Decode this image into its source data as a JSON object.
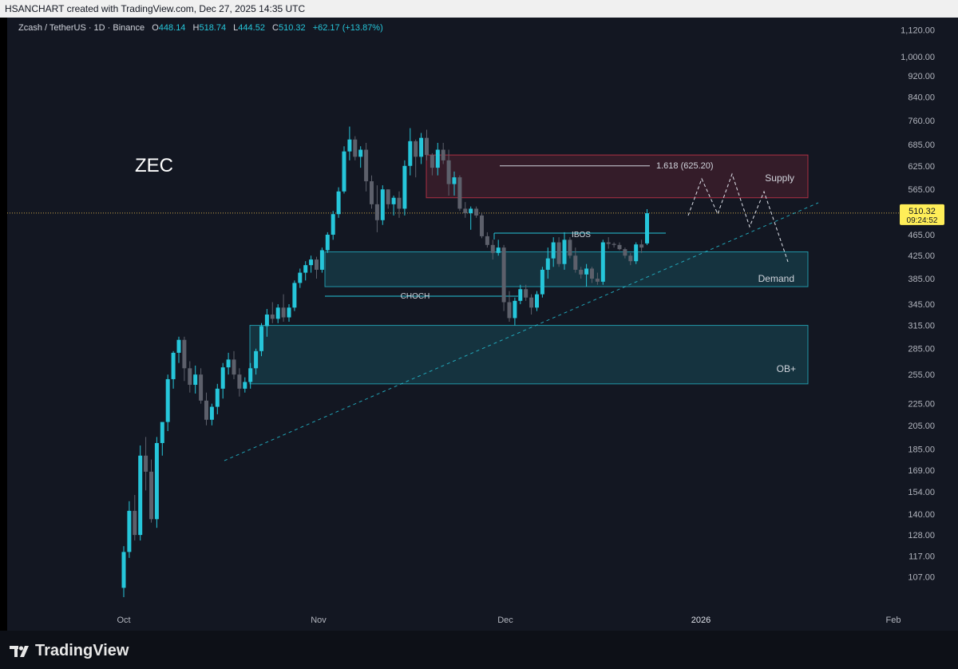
{
  "header": {
    "caption": "HSANCHART created with TradingView.com, Dec 27, 2025 14:35 UTC"
  },
  "legend": {
    "symbol": "Zcash / TetherUS · 1D · Binance",
    "open_label": "O",
    "open": "448.14",
    "high_label": "H",
    "high": "518.74",
    "low_label": "L",
    "low": "444.52",
    "close_label": "C",
    "close": "510.32",
    "change": "+62.17 (+13.87%)"
  },
  "branding": {
    "name": "TradingView"
  },
  "colors": {
    "background": "#131722",
    "up": "#26c6da",
    "down": "#5d606b",
    "zone_blue": "#26c6da",
    "zone_red": "#e53950",
    "price_tag": "#ffee58",
    "last_price_line": "#c8a24a"
  },
  "chart_data": {
    "type": "candlestick",
    "scale": "log",
    "ylim": [
      98,
      1150
    ],
    "y_ticks": [
      "1,120.00",
      "1,000.00",
      "920.00",
      "840.00",
      "760.00",
      "685.00",
      "625.00",
      "565.00",
      "510.32",
      "465.00",
      "425.00",
      "385.00",
      "345.00",
      "315.00",
      "285.00",
      "255.00",
      "225.00",
      "205.00",
      "185.00",
      "169.00",
      "154.00",
      "140.00",
      "128.00",
      "117.00",
      "107.00"
    ],
    "x_ticks": [
      "Oct",
      "Nov",
      "Dec",
      "2026",
      "Feb"
    ],
    "last_price": "510.32",
    "countdown": "09:24:52",
    "candles": [
      [
        102,
        122,
        98,
        119
      ],
      [
        119,
        148,
        116,
        142
      ],
      [
        142,
        152,
        125,
        128
      ],
      [
        128,
        188,
        125,
        180
      ],
      [
        180,
        195,
        155,
        168
      ],
      [
        168,
        177,
        135,
        137
      ],
      [
        137,
        195,
        132,
        190
      ],
      [
        190,
        205,
        180,
        208
      ],
      [
        208,
        255,
        200,
        250
      ],
      [
        250,
        282,
        240,
        280
      ],
      [
        280,
        300,
        268,
        296
      ],
      [
        296,
        300,
        248,
        262
      ],
      [
        262,
        270,
        236,
        244
      ],
      [
        244,
        265,
        235,
        255
      ],
      [
        255,
        262,
        225,
        228
      ],
      [
        228,
        236,
        205,
        210
      ],
      [
        210,
        225,
        205,
        222
      ],
      [
        222,
        245,
        215,
        240
      ],
      [
        240,
        268,
        230,
        263
      ],
      [
        263,
        280,
        255,
        272
      ],
      [
        272,
        282,
        250,
        255
      ],
      [
        255,
        262,
        232,
        240
      ],
      [
        240,
        252,
        236,
        247
      ],
      [
        247,
        268,
        240,
        262
      ],
      [
        262,
        285,
        255,
        282
      ],
      [
        282,
        318,
        276,
        314
      ],
      [
        314,
        338,
        300,
        330
      ],
      [
        330,
        348,
        318,
        324
      ],
      [
        324,
        345,
        318,
        340
      ],
      [
        340,
        360,
        320,
        326
      ],
      [
        326,
        345,
        320,
        340
      ],
      [
        340,
        382,
        335,
        378
      ],
      [
        378,
        402,
        370,
        395
      ],
      [
        395,
        415,
        382,
        408
      ],
      [
        408,
        425,
        395,
        418
      ],
      [
        418,
        423,
        385,
        400
      ],
      [
        400,
        440,
        395,
        435
      ],
      [
        435,
        470,
        430,
        465
      ],
      [
        465,
        515,
        455,
        508
      ],
      [
        508,
        570,
        500,
        560
      ],
      [
        560,
        680,
        555,
        665
      ],
      [
        665,
        740,
        640,
        700
      ],
      [
        700,
        710,
        640,
        650
      ],
      [
        650,
        680,
        620,
        670
      ],
      [
        670,
        690,
        560,
        585
      ],
      [
        585,
        600,
        520,
        530
      ],
      [
        530,
        575,
        470,
        495
      ],
      [
        495,
        575,
        485,
        565
      ],
      [
        565,
        565,
        520,
        530
      ],
      [
        530,
        550,
        505,
        545
      ],
      [
        545,
        560,
        500,
        520
      ],
      [
        520,
        640,
        505,
        625
      ],
      [
        625,
        735,
        600,
        695
      ],
      [
        695,
        700,
        595,
        650
      ],
      [
        650,
        720,
        630,
        705
      ],
      [
        705,
        730,
        640,
        655
      ],
      [
        655,
        660,
        600,
        620
      ],
      [
        620,
        690,
        600,
        670
      ],
      [
        670,
        690,
        630,
        640
      ],
      [
        640,
        670,
        550,
        578
      ],
      [
        578,
        610,
        550,
        595
      ],
      [
        595,
        600,
        515,
        520
      ],
      [
        520,
        535,
        500,
        510
      ],
      [
        510,
        525,
        475,
        520
      ],
      [
        520,
        525,
        500,
        505
      ],
      [
        505,
        510,
        458,
        462
      ],
      [
        462,
        470,
        440,
        445
      ],
      [
        445,
        455,
        418,
        430
      ],
      [
        430,
        455,
        425,
        440
      ],
      [
        440,
        445,
        335,
        348
      ],
      [
        348,
        365,
        320,
        325
      ],
      [
        325,
        355,
        315,
        350
      ],
      [
        350,
        375,
        345,
        368
      ],
      [
        368,
        375,
        350,
        355
      ],
      [
        355,
        360,
        330,
        340
      ],
      [
        340,
        365,
        335,
        360
      ],
      [
        360,
        405,
        355,
        400
      ],
      [
        400,
        440,
        385,
        420
      ],
      [
        420,
        460,
        405,
        450
      ],
      [
        450,
        460,
        405,
        410
      ],
      [
        410,
        470,
        400,
        455
      ],
      [
        455,
        460,
        420,
        425
      ],
      [
        425,
        440,
        395,
        400
      ],
      [
        400,
        405,
        385,
        392
      ],
      [
        392,
        410,
        372,
        402
      ],
      [
        402,
        405,
        378,
        385
      ],
      [
        385,
        395,
        375,
        380
      ],
      [
        380,
        455,
        375,
        450
      ],
      [
        450,
        460,
        438,
        447
      ],
      [
        447,
        450,
        440,
        445
      ],
      [
        445,
        450,
        435,
        437
      ],
      [
        437,
        440,
        420,
        425
      ],
      [
        425,
        430,
        408,
        415
      ],
      [
        415,
        450,
        410,
        446
      ],
      [
        446,
        455,
        430,
        440
      ],
      [
        448,
        519,
        445,
        510
      ]
    ],
    "annotations": [
      "ZEC",
      "1.618 (625.20)",
      "Supply",
      "IBOS",
      "CHOCH",
      "Demand",
      "OB+"
    ]
  }
}
